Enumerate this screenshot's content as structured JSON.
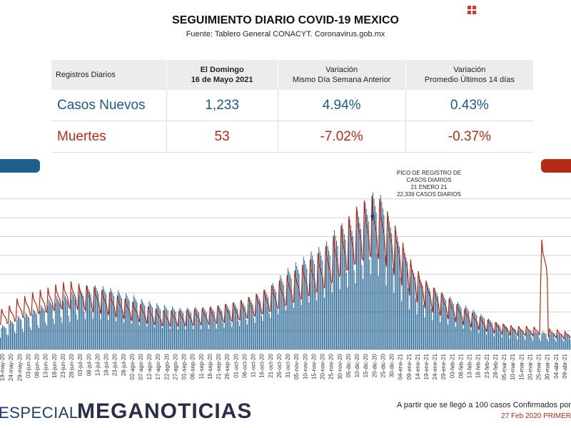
{
  "header": {
    "title": "SEGUIMIENTO DIARIO COVID-19 MEXICO",
    "source": "Fuente: Tablero General CONACYT. Coronavirus.gob.mx"
  },
  "table": {
    "col_registros": "Registros Diarios",
    "col_date_line1": "El Domingo",
    "col_date_line2": "16 de Mayo 2021",
    "col_var1_line1": "Variación",
    "col_var1_line2": "Mismo Día Semana Anterior",
    "col_var2_line1": "Variación",
    "col_var2_line2": "Promedio Últimos 14 días",
    "rows": [
      {
        "label": "Casos Nuevos",
        "value": "1,233",
        "var_week": "4.94%",
        "var_14": "0.43%"
      },
      {
        "label": "Muertes",
        "value": "53",
        "var_week": "-7.02%",
        "var_14": "-0.37%"
      }
    ]
  },
  "annotation": {
    "line1": "PICO DE REGISTRO DE",
    "line2": "CASOS DIARIOS",
    "line3": "21 ENERO 21",
    "line4": "22,339 CASOS DIARIOS"
  },
  "footer": {
    "especial": "ESPECIAL",
    "brand": "MEGANOTICIAS",
    "note": "A partir que se llegó a 100 casos Confirmados por",
    "date_note": "27 Feb 2020 PRIMER"
  },
  "colors": {
    "cases": "#1e5f8f",
    "deaths": "#b52b16"
  },
  "chart_data": {
    "type": "bar",
    "grid": true,
    "x_ticks": [
      "19-may-20",
      "24-may-20",
      "29-may-20",
      "03-jun-20",
      "08-jun-20",
      "13-jun-20",
      "18-jun-20",
      "23-jun-20",
      "28-jun-20",
      "03-jul-20",
      "08-jul-20",
      "13-jul-20",
      "18-jul-20",
      "23-jul-20",
      "28-jul-20",
      "02-ago-20",
      "07-ago-20",
      "12-ago-20",
      "17-ago-20",
      "22-ago-20",
      "27-ago-20",
      "01-sep-20",
      "06-sep-20",
      "11-sep-20",
      "16-sep-20",
      "21-sep-20",
      "26-sep-20",
      "01-oct-20",
      "06-oct-20",
      "11-oct-20",
      "16-oct-20",
      "21-oct-20",
      "26-oct-20",
      "31-oct-20",
      "05-nov-20",
      "10-nov-20",
      "15-nov-20",
      "20-nov-20",
      "25-nov-20",
      "30-nov-20",
      "05-dic-20",
      "10-dic-20",
      "15-dic-20",
      "20-dic-20",
      "25-dic-20",
      "30-dic-20",
      "04-ene-21",
      "09-ene-21",
      "14-ene-21",
      "19-ene-21",
      "24-ene-21",
      "29-ene-21",
      "03-feb-21",
      "08-feb-21",
      "13-feb-21",
      "18-feb-21",
      "23-feb-21",
      "28-feb-21",
      "05-mar-21",
      "10-mar-21",
      "15-mar-21",
      "20-mar-21",
      "25-mar-21",
      "30-mar-21",
      "04-abr-21",
      "09-abr-21"
    ],
    "series": [
      {
        "type": "bar",
        "color": "#1e5f8f",
        "weekly_values": [
          3400,
          4100,
          4700,
          5100,
          5600,
          6200,
          7000,
          7400,
          7700,
          8000,
          8600,
          8800,
          8900,
          8800,
          8500,
          8200,
          7800,
          7500,
          7000,
          6700,
          6400,
          6200,
          6000,
          5800,
          5800,
          5900,
          5900,
          6000,
          6100,
          6300,
          6500,
          6800,
          7200,
          7700,
          8300,
          9200,
          10300,
          11300,
          12100,
          12900,
          13600,
          14200,
          15000,
          16500,
          17500,
          18000,
          19200,
          20400,
          21800,
          21400,
          18500,
          16400,
          14000,
          11600,
          10200,
          9300,
          8500,
          7900,
          7300,
          6600,
          6100,
          5500,
          4900,
          4300,
          3800,
          3500,
          3200,
          3000,
          2800,
          2600,
          2500,
          2400,
          2300,
          2300
        ]
      },
      {
        "type": "line",
        "color": "#b52b16",
        "weekly_values": [
          5200,
          5600,
          6500,
          6800,
          7300,
          7600,
          7900,
          8300,
          8600,
          8700,
          8400,
          8200,
          8000,
          7600,
          7300,
          6900,
          6500,
          6100,
          5800,
          5500,
          5200,
          5000,
          5000,
          5000,
          5100,
          5200,
          5300,
          5400,
          5600,
          5800,
          6000,
          6300,
          6700,
          7100,
          7600,
          8200,
          8800,
          9500,
          10100,
          10800,
          11500,
          12300,
          13200,
          14500,
          15800,
          17000,
          18200,
          19000,
          19600,
          19200,
          17600,
          15800,
          13600,
          11500,
          10000,
          8800,
          7900,
          7200,
          6500,
          5800,
          5200,
          4700,
          4200,
          3800,
          3500,
          3300,
          3100,
          3000,
          3000,
          2900,
          14000,
          2600,
          2500,
          2300
        ]
      }
    ]
  }
}
